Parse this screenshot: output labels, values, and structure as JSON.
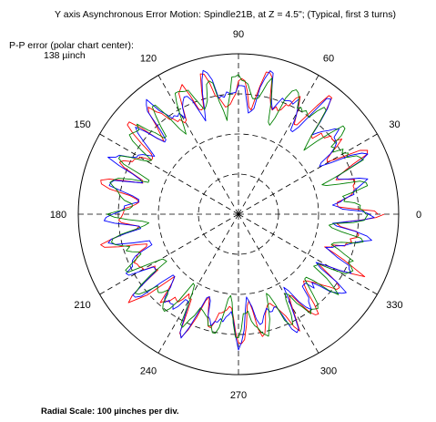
{
  "chart_data": {
    "type": "line",
    "polar": true,
    "title": "Y axis Asynchronous Error Motion: Spindle21B, at Z = 4.5\"; (Typical, first 3 turns)",
    "pp_error_label": "P-P error (polar chart center):",
    "pp_error_value": "138 µinch",
    "radial_scale_note": "Radial Scale: 100 µinches per div.",
    "angle_ticks": [
      "0",
      "30",
      "60",
      "90",
      "120",
      "150",
      "180",
      "210",
      "240",
      "270",
      "300",
      "330"
    ],
    "radial_divisions": 4,
    "grid": true,
    "series": [
      {
        "color": "#ff0000",
        "seed": 11
      },
      {
        "color": "#0000ff",
        "seed": 23
      },
      {
        "color": "#008000",
        "seed": 37
      }
    ]
  }
}
